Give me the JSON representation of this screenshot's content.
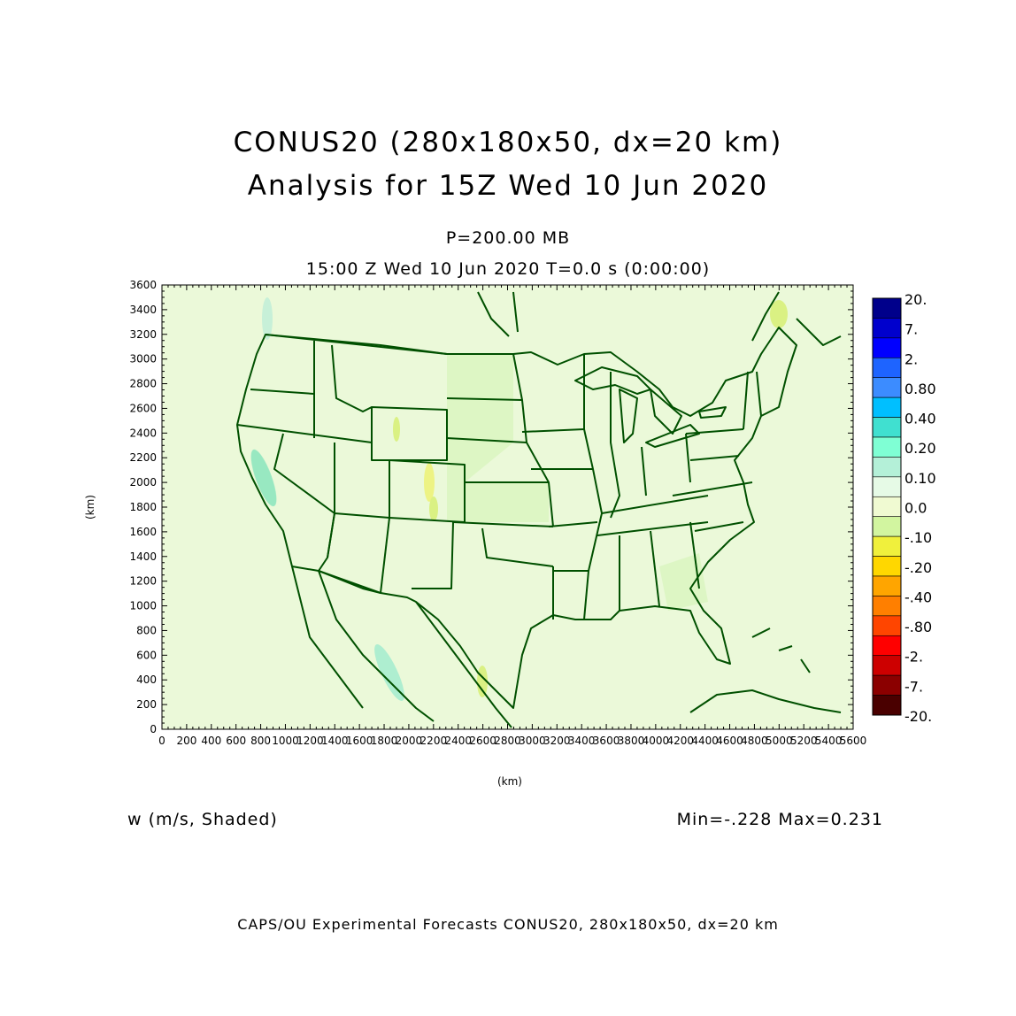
{
  "title_line1": "CONUS20 (280x180x50, dx=20 km)",
  "title_line2": "Analysis for 15Z Wed 10 Jun 2020",
  "level_label": "P=200.00 MB",
  "time_label": "15:00 Z Wed 10 Jun 2020    T=0.0 s (0:00:00)",
  "variable_label": "w (m/s, Shaded)",
  "min_max_label": "Min=-.228 Max=0.231",
  "footer": "CAPS/OU Experimental Forecasts  CONUS20, 280x180x50, dx=20 km",
  "axes": {
    "x_label": "(km)",
    "y_label": "(km)",
    "x_range": [
      0,
      5600
    ],
    "y_range": [
      0,
      3600
    ],
    "x_ticks": [
      "0",
      "200",
      "400",
      "600",
      "800",
      "1000",
      "1200",
      "1400",
      "1600",
      "1800",
      "2000",
      "2200",
      "2400",
      "2600",
      "2800",
      "3000",
      "3200",
      "3400",
      "3600",
      "3800",
      "4000",
      "4200",
      "4400",
      "4600",
      "4800",
      "5000",
      "5200",
      "5400",
      "5600"
    ],
    "y_ticks": [
      "0",
      "200",
      "400",
      "600",
      "800",
      "1000",
      "1200",
      "1400",
      "1600",
      "1800",
      "2000",
      "2200",
      "2400",
      "2600",
      "2800",
      "3000",
      "3200",
      "3400",
      "3600"
    ]
  },
  "colorbar": {
    "labels": [
      "20.",
      "7.",
      "2.",
      "0.80",
      "0.40",
      "0.20",
      "0.10",
      "0.0",
      "-.10",
      "-.20",
      "-.40",
      "-.80",
      "-2.",
      "-7.",
      "-20."
    ],
    "colors": [
      "#00008b",
      "#0000cd",
      "#0000ff",
      "#1e64ff",
      "#3c8cff",
      "#00bfff",
      "#40e0d0",
      "#7fffd4",
      "#b4f0d8",
      "#e6fae6",
      "#f0fad2",
      "#d2f5a0",
      "#f0f03c",
      "#ffd700",
      "#ffa500",
      "#ff7f00",
      "#ff4500",
      "#ff0000",
      "#cd0000",
      "#8b0000",
      "#4a0000"
    ]
  },
  "colors": {
    "map_background": "#ebf9d9",
    "land_shade": "#dcf5c2",
    "border": "#005000"
  }
}
